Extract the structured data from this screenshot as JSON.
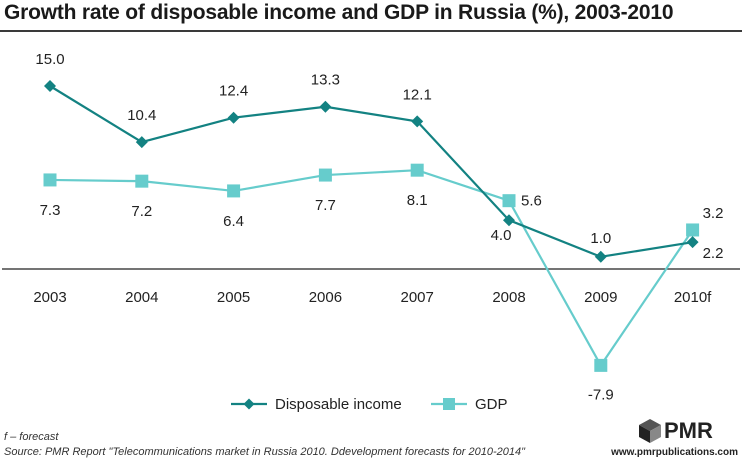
{
  "chart_data": {
    "type": "line",
    "title": "Growth rate of disposable income and GDP in Russia (%), 2003-2010",
    "categories": [
      "2003",
      "2004",
      "2005",
      "2006",
      "2007",
      "2008",
      "2009",
      "2010f"
    ],
    "series": [
      {
        "name": "Disposable income",
        "values": [
          15.0,
          10.4,
          12.4,
          13.3,
          12.1,
          4.0,
          1.0,
          2.2
        ],
        "labels": [
          "15.0",
          "10.4",
          "12.4",
          "13.3",
          "12.1",
          "4.0",
          "1.0",
          "2.2"
        ],
        "color": "#138282",
        "marker": "diamond"
      },
      {
        "name": "GDP",
        "values": [
          7.3,
          7.2,
          6.4,
          7.7,
          8.1,
          5.6,
          -7.9,
          3.2
        ],
        "labels": [
          "7.3",
          "7.2",
          "6.4",
          "7.7",
          "8.1",
          "5.6",
          "-7.9",
          "3.2"
        ],
        "color": "#66cccc",
        "marker": "square"
      }
    ],
    "ylim": [
      -10,
      16
    ],
    "grid": false,
    "legend": "bottom-center"
  },
  "footnotes": {
    "forecast": "f – forecast",
    "source": "Source: PMR Report \"Telecommunications market in Russia 2010. Ddevelopment forecasts for 2010-2014\""
  },
  "logo": {
    "name": "PMR",
    "url": "www.pmrpublications.com"
  }
}
